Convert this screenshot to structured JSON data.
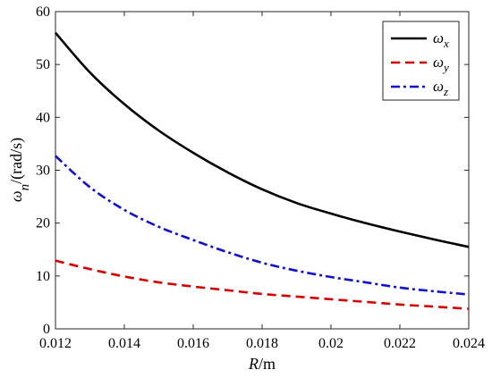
{
  "chart_data": {
    "type": "line",
    "xlabel": "R/m",
    "ylabel": "ω_n/(rad/s)",
    "xlim": [
      0.012,
      0.024
    ],
    "ylim": [
      0,
      60
    ],
    "x_ticks": [
      "0.012",
      "0.014",
      "0.016",
      "0.018",
      "0.02",
      "0.022",
      "0.024"
    ],
    "y_ticks": [
      "0",
      "10",
      "20",
      "30",
      "40",
      "50",
      "60"
    ],
    "grid": false,
    "legend_position": "top-right",
    "series": [
      {
        "name": "ωx",
        "legend_symbol": "ω",
        "legend_subscript": "x",
        "color": "#000000",
        "style": "solid",
        "x": [
          0.012,
          0.013,
          0.014,
          0.015,
          0.016,
          0.017,
          0.018,
          0.019,
          0.02,
          0.021,
          0.022,
          0.023,
          0.024
        ],
        "y": [
          56,
          48.5,
          42.5,
          37.5,
          33.3,
          29.6,
          26.4,
          23.8,
          21.8,
          20.0,
          18.4,
          16.9,
          15.5
        ]
      },
      {
        "name": "ωy",
        "legend_symbol": "ω",
        "legend_subscript": "y",
        "color": "#d40000",
        "style": "dashed",
        "x": [
          0.012,
          0.013,
          0.014,
          0.015,
          0.016,
          0.017,
          0.018,
          0.019,
          0.02,
          0.021,
          0.022,
          0.023,
          0.024
        ],
        "y": [
          12.9,
          11.3,
          9.9,
          8.8,
          8.0,
          7.3,
          6.6,
          6.1,
          5.6,
          5.1,
          4.6,
          4.2,
          3.8
        ]
      },
      {
        "name": "ωz",
        "legend_symbol": "ω",
        "legend_subscript": "z",
        "color": "#1010d0",
        "style": "dashdot",
        "x": [
          0.012,
          0.013,
          0.014,
          0.015,
          0.016,
          0.017,
          0.018,
          0.019,
          0.02,
          0.021,
          0.022,
          0.023,
          0.024
        ],
        "y": [
          32.7,
          26.8,
          22.5,
          19.3,
          16.8,
          14.5,
          12.5,
          11.0,
          9.8,
          8.8,
          7.8,
          7.1,
          6.5
        ]
      }
    ]
  }
}
